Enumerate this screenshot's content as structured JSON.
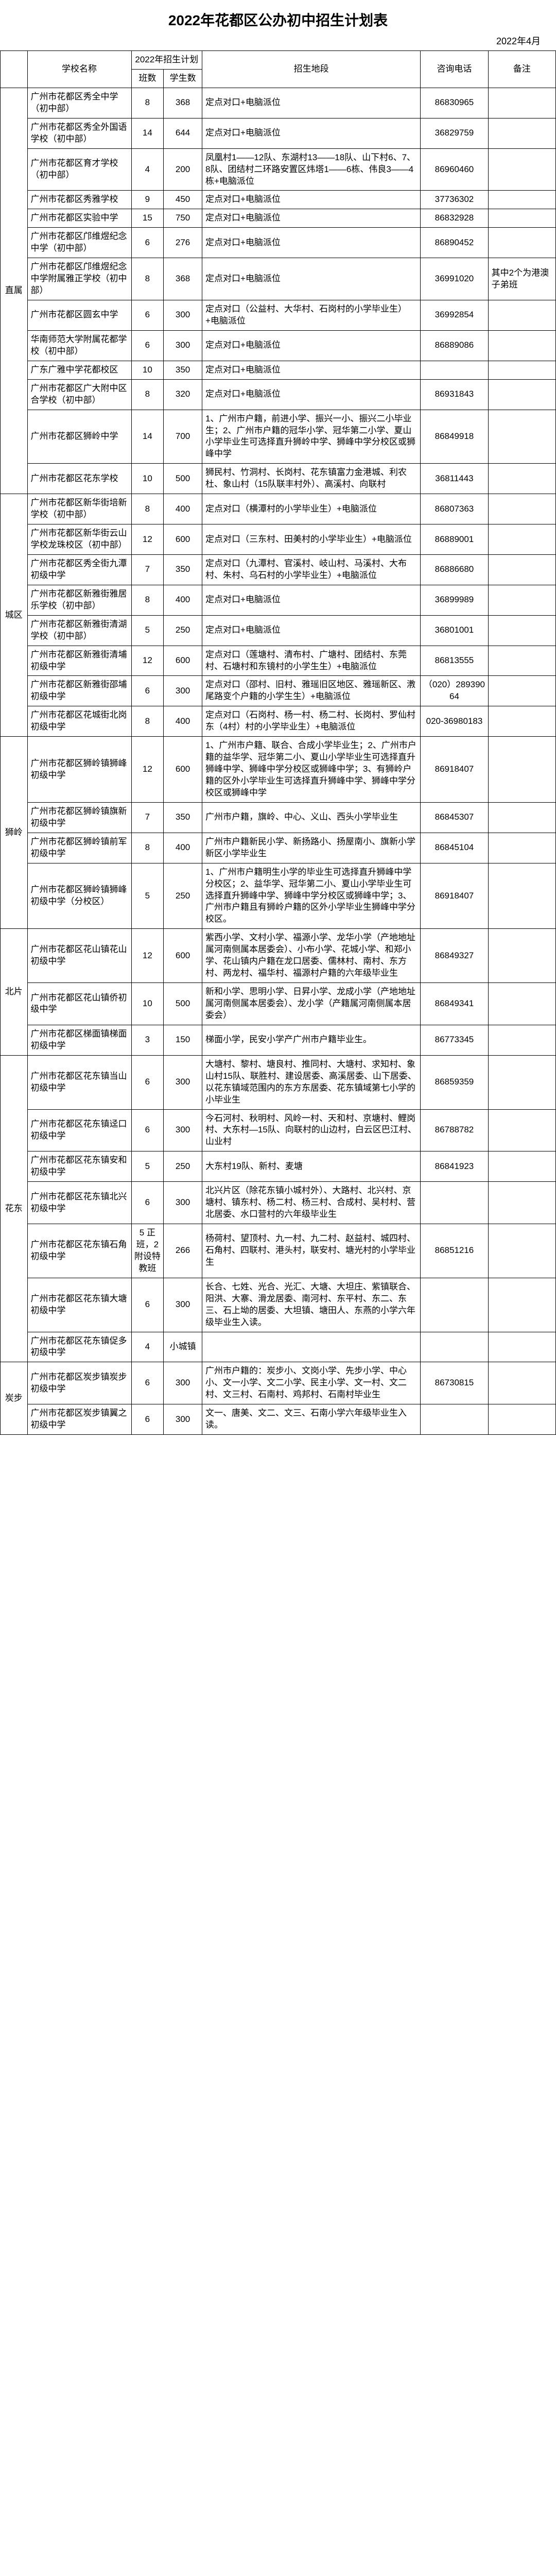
{
  "title": "2022年花都区公办初中招生计划表",
  "date": "2022年4月",
  "headers": {
    "region": "",
    "school": "学校名称",
    "plan": "2022年招生计划",
    "classes": "班数",
    "students": "学生数",
    "area": "招生地段",
    "tel": "咨询电话",
    "note": "备注"
  },
  "regions": [
    {
      "name": "直属",
      "rows": [
        {
          "school": "广州市花都区秀全中学（初中部）",
          "cls": "8",
          "stu": "368",
          "area": "定点对口+电脑派位",
          "tel": "86830965",
          "note": ""
        },
        {
          "school": "广州市花都区秀全外国语学校（初中部）",
          "cls": "14",
          "stu": "644",
          "area": "定点对口+电脑派位",
          "tel": "36829759",
          "note": ""
        },
        {
          "school": "广州市花都区育才学校（初中部）",
          "cls": "4",
          "stu": "200",
          "area": "凤凰村1——12队、东湖村13——18队、山下村6、7、8队、团结村二环路安置区炜塔1——6栋、伟良3——4栋+电脑派位",
          "tel": "86960460",
          "note": ""
        },
        {
          "school": "广州市花都区秀雅学校",
          "cls": "9",
          "stu": "450",
          "area": "定点对口+电脑派位",
          "tel": "37736302",
          "note": ""
        },
        {
          "school": "广州市花都区实验中学",
          "cls": "15",
          "stu": "750",
          "area": "定点对口+电脑派位",
          "tel": "86832928",
          "note": ""
        },
        {
          "school": "广州市花都区邝维煜纪念中学（初中部）",
          "cls": "6",
          "stu": "276",
          "area": "定点对口+电脑派位",
          "tel": "86890452",
          "note": ""
        },
        {
          "school": "广州市花都区邝维煜纪念中学附属雅正学校（初中部）",
          "cls": "8",
          "stu": "368",
          "area": "定点对口+电脑派位",
          "tel": "36991020",
          "note": "其中2个为港澳子弟班"
        },
        {
          "school": "广州市花都区圆玄中学",
          "cls": "6",
          "stu": "300",
          "area": "定点对口（公益村、大华村、石岗村的小学毕业生）+电脑派位",
          "tel": "36992854",
          "note": ""
        },
        {
          "school": "华南师范大学附属花都学校（初中部）",
          "cls": "6",
          "stu": "300",
          "area": "定点对口+电脑派位",
          "tel": "86889086",
          "note": ""
        },
        {
          "school": "广东广雅中学花都校区",
          "cls": "10",
          "stu": "350",
          "area": "定点对口+电脑派位",
          "tel": "",
          "note": ""
        },
        {
          "school": "广州市花都区广大附中区合学校（初中部）",
          "cls": "8",
          "stu": "320",
          "area": "定点对口+电脑派位",
          "tel": "86931843",
          "note": ""
        },
        {
          "school": "广州市花都区狮岭中学",
          "cls": "14",
          "stu": "700",
          "area": "1、广州市户籍，前进小学、振兴一小、振兴二小毕业生；2、广州市户籍的冠华小学、冠华第二小学、夏山小学毕业生可选择直升狮岭中学、狮峰中学分校区或狮峰中学",
          "tel": "86849918",
          "note": ""
        },
        {
          "school": "广州市花都区花东学校",
          "cls": "10",
          "stu": "500",
          "area": "狮民村、竹洞村、长岗村、花东镇富力金港城、利农杜、象山村（15队联丰村外）、高溪村、向联村",
          "tel": "36811443",
          "note": ""
        }
      ]
    },
    {
      "name": "城区",
      "rows": [
        {
          "school": "广州市花都区新华街培新学校（初中部）",
          "cls": "8",
          "stu": "400",
          "area": "定点对口（横潭村的小学毕业生）+电脑派位",
          "tel": "86807363",
          "note": ""
        },
        {
          "school": "广州市花都区新华街云山学校龙珠校区（初中部）",
          "cls": "12",
          "stu": "600",
          "area": "定点对口（三东村、田美村的小学毕业生）+电脑派位",
          "tel": "86889001",
          "note": ""
        },
        {
          "school": "广州市花都区秀全街九潭初级中学",
          "cls": "7",
          "stu": "350",
          "area": "定点对口（九潭村、官溪村、岐山村、马溪村、大布村、朱村、乌石村的小学毕业生）+电脑派位",
          "tel": "86886680",
          "note": ""
        },
        {
          "school": "广州市花都区新雅街雅居乐学校（初中部）",
          "cls": "8",
          "stu": "400",
          "area": "定点对口+电脑派位",
          "tel": "36899989",
          "note": ""
        },
        {
          "school": "广州市花都区新雅街清湖学校（初中部）",
          "cls": "5",
          "stu": "250",
          "area": "定点对口+电脑派位",
          "tel": "36801001",
          "note": ""
        },
        {
          "school": "广州市花都区新雅街清埔初级中学",
          "cls": "12",
          "stu": "600",
          "area": "定点对口（莲塘村、清布村、广塘村、团结村、东莞村、石塘村和东镜村的小学生生）+电脑派位",
          "tel": "86813555",
          "note": ""
        },
        {
          "school": "广州市花都区新雅街邵埔初级中学",
          "cls": "6",
          "stu": "300",
          "area": "定点对口（邵村、旧村、雅瑶旧区地区、雅瑶新区、漖尾路变个户籍的小学生生）+电脑派位",
          "tel": "（020）28939064",
          "note": ""
        },
        {
          "school": "广州市花都区花城街北岗初级中学",
          "cls": "8",
          "stu": "400",
          "area": "定点对口（石岗村、杨一村、杨二村、长岗村、罗仙村东（4村）村的小学毕业生）+电脑派位",
          "tel": "020-36980183",
          "note": ""
        }
      ]
    },
    {
      "name": "狮岭",
      "rows": [
        {
          "school": "广州市花都区狮岭镇狮峰初级中学",
          "cls": "12",
          "stu": "600",
          "area": "1、广州市户籍、联合、合成小学毕业生；2、广州市户籍的益华学、冠华第二小、夏山小学毕业生可选择直升狮峰中学、狮峰中学分校区或狮峰中学；3、有狮岭户籍的区外小学毕业生可选择直升狮峰中学、狮峰中学分校区或狮峰中学",
          "tel": "86918407",
          "note": ""
        },
        {
          "school": "广州市花都区狮岭镇旗新初级中学",
          "cls": "7",
          "stu": "350",
          "area": "广州市户籍，旗岭、中心、义山、西头小学毕业生",
          "tel": "86845307",
          "note": ""
        },
        {
          "school": "广州市花都区狮岭镇前军初级中学",
          "cls": "8",
          "stu": "400",
          "area": "广州市户籍新民小学、新扬路小、扬屋南小、旗新小学新区小学毕业生",
          "tel": "86845104",
          "note": ""
        },
        {
          "school": "广州市花都区狮岭镇狮峰初级中学（分校区）",
          "cls": "5",
          "stu": "250",
          "area": "1、广州市户籍明生小学的毕业生可选择直升狮峰中学分校区；2、益华学、冠华第二小、夏山小学毕业生可选择直升狮峰中学、狮峰中学分校区或狮峰中学；3、广州市户籍且有狮岭户籍的区外小学毕业生狮峰中学分校区。",
          "tel": "86918407",
          "note": ""
        }
      ]
    },
    {
      "name": "北片",
      "rows": [
        {
          "school": "广州市花都区花山镇花山初级中学",
          "cls": "12",
          "stu": "600",
          "area": "紫西小学、文村小学、福源小学、龙华小学（产地地址属河南侧属本居委会）、小布小学、花城小学、和郑小学、花山镇内户籍在龙口居委、儒林村、南村、东方村、两龙村、福华村、福源村户籍的六年级毕业生",
          "tel": "86849327",
          "note": ""
        },
        {
          "school": "广州市花都区花山镇侨初级中学",
          "cls": "10",
          "stu": "500",
          "area": "新和小学、思明小学、日昇小学、龙成小学（产地地址属河南侧属本居委会）、龙小学（产籍属河南侧属本居委会）",
          "tel": "86849341",
          "note": ""
        },
        {
          "school": "广州市花都区梯面镇梯面初级中学",
          "cls": "3",
          "stu": "150",
          "area": "梯面小学，民安小学产广州市户籍毕业生。",
          "tel": "86773345",
          "note": ""
        }
      ]
    },
    {
      "name": "花东",
      "rows": [
        {
          "school": "广州市花都区花东镇当山初级中学",
          "cls": "6",
          "stu": "300",
          "area": "大塘村、黎村、塘良村、推同村、大塘村、求知村、象山村15队、联胜村、建设居委、高溪居委、山下居委、以花东镇域范围内的东方东居委、花东镇域第七小学的小毕业生",
          "tel": "86859359",
          "note": ""
        },
        {
          "school": "广州市花都区花东镇迳口初级中学",
          "cls": "6",
          "stu": "300",
          "area": "今石河村、秋明村、风岭一村、天和村、京塘村、鲤岗村、大东村—15队、向联村的山边村，白云区巴江村、山业村",
          "tel": "86788782",
          "note": ""
        },
        {
          "school": "广州市花都区花东镇安和初级中学",
          "cls": "5",
          "stu": "250",
          "area": "大东村19队、新村、麦塘",
          "tel": "86841923",
          "note": ""
        },
        {
          "school": "广州市花都区花东镇北兴初级中学",
          "cls": "6",
          "stu": "300",
          "area": "北兴片区（除花东镇小城村外）、大路村、北兴村、京塘村、镇东村、杨二村、杨三村、合成村、吴村村、营北居委、水口营村的六年级毕业生",
          "tel": "",
          "note": ""
        },
        {
          "school": "广州市花都区花东镇石角初级中学",
          "cls": "5 正班，2 附设特教班",
          "stu": "266",
          "area": "杨荷村、望顶村、九一村、九二村、赵益村、城四村、石角村、四联村、港头村，联安村、塘光村的小学毕业生",
          "tel": "86851216",
          "note": ""
        },
        {
          "school": "广州市花都区花东镇大塘初级中学",
          "cls": "6",
          "stu": "300",
          "area": "长合、七姓、光合、光汇、大塘、大坦庄、紫镇联合、阳洪、大寨、滑龙居委、南河村、东平村、东二、东三、石上坳的居委、大坦镇、塘田人、东燕的小学六年级毕业生入读。",
          "tel": "",
          "note": ""
        },
        {
          "school": "广州市花都区花东镇促多初级中学",
          "cls": "4",
          "stu": "小城镇",
          "area": "",
          "tel": "",
          "note": ""
        }
      ]
    },
    {
      "name": "炭步",
      "rows": [
        {
          "school": "广州市花都区炭步镇炭步初级中学",
          "cls": "6",
          "stu": "300",
          "area": "广州市户籍的：炭步小、文岗小学、先步小学、中心小、文一小学、文二小学、民主小学、文一村、文二村、文三村、石南村、鸡邦村、石南村毕业生",
          "tel": "86730815",
          "note": ""
        },
        {
          "school": "广州市花都区炭步镇翼之初级中学",
          "cls": "6",
          "stu": "300",
          "area": "文一、唐美、文二、文三、石南小学六年级毕业生入读。",
          "tel": "",
          "note": ""
        }
      ]
    }
  ]
}
